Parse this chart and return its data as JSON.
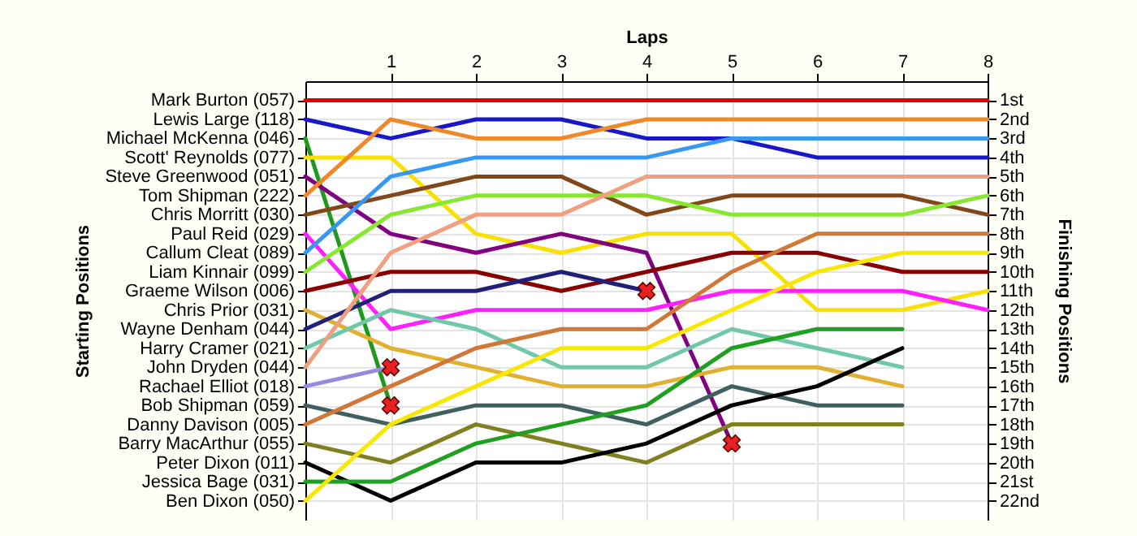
{
  "chart_data": {
    "type": "line",
    "xlabel": "Laps",
    "y2label": "Finishing Positions",
    "x": [
      0,
      1,
      2,
      3,
      4,
      5,
      6,
      7,
      8
    ],
    "xlim": [
      0,
      8
    ],
    "xticks": [
      1,
      2,
      3,
      4,
      5,
      6,
      7,
      8
    ],
    "y2lim": [
      23,
      0
    ],
    "y2ticks": [
      {
        "value": 1,
        "label": "1st"
      },
      {
        "value": 2,
        "label": "2nd"
      },
      {
        "value": 3,
        "label": "3rd"
      },
      {
        "value": 4,
        "label": "4th"
      },
      {
        "value": 5,
        "label": "5th"
      },
      {
        "value": 6,
        "label": "6th"
      },
      {
        "value": 7,
        "label": "7th"
      },
      {
        "value": 8,
        "label": "8th"
      },
      {
        "value": 9,
        "label": "9th"
      },
      {
        "value": 10,
        "label": "10th"
      },
      {
        "value": 11,
        "label": "11th"
      },
      {
        "value": 12,
        "label": "12th"
      },
      {
        "value": 13,
        "label": "13th"
      },
      {
        "value": 14,
        "label": "14th"
      },
      {
        "value": 15,
        "label": "15th"
      },
      {
        "value": 16,
        "label": "16th"
      },
      {
        "value": 17,
        "label": "17th"
      },
      {
        "value": 18,
        "label": "18th"
      },
      {
        "value": 19,
        "label": "19th"
      },
      {
        "value": 20,
        "label": "20th"
      },
      {
        "value": 21,
        "label": "21st"
      },
      {
        "value": 22,
        "label": "22nd"
      }
    ],
    "annotations": [
      "Starting Positions",
      "Mark Burton (057)",
      "Lewis Large (118)",
      "Michael McKenna (046)",
      "Scott' Reynolds (077)",
      "Steve Greenwood (051)",
      "Tom Shipman (222)",
      "Chris Morritt (030)",
      "Paul Reid (029)",
      "Callum Cleat (089)",
      "Liam Kinnair (099)",
      "Graeme Wilson (006)",
      "Chris Prior (031)",
      "Wayne Denham (044)",
      "Harry Cramer (021)",
      "John Dryden (044)",
      "Rachael Elliot (018)",
      "Bob Shipman (059)",
      "Danny Davison (005)",
      "Barry MacArthur (055)",
      "Peter Dixon (011)",
      "Jessica Bage (031)",
      "Ben Dixon (050)"
    ],
    "grid": true,
    "series": [
      {
        "axis": "y2",
        "color": "#e00000",
        "values": [
          1,
          1,
          1,
          1,
          1,
          1,
          1,
          1,
          1
        ]
      },
      {
        "axis": "y2",
        "color": "#1818c8",
        "values": [
          2,
          3,
          2,
          2,
          3,
          3,
          4,
          4,
          4
        ]
      },
      {
        "axis": "y2",
        "color": "#209820",
        "values": [
          3,
          17,
          null,
          null,
          null,
          null,
          null,
          null,
          null
        ]
      },
      {
        "axis": "y2",
        "color": "#f8e000",
        "values": [
          4,
          4,
          8,
          9,
          8,
          8,
          12,
          12,
          11
        ]
      },
      {
        "axis": "y2",
        "color": "#800080",
        "values": [
          5,
          8,
          9,
          8,
          9,
          19,
          null,
          null,
          null
        ]
      },
      {
        "axis": "y2",
        "color": "#f08828",
        "values": [
          6,
          2,
          3,
          3,
          2,
          2,
          2,
          2,
          2
        ]
      },
      {
        "axis": "y2",
        "color": "#804818",
        "values": [
          7,
          6,
          5,
          5,
          7,
          6,
          6,
          6,
          7
        ]
      },
      {
        "axis": "y2",
        "color": "#ff20ff",
        "values": [
          8,
          13,
          12,
          12,
          12,
          11,
          11,
          11,
          12
        ]
      },
      {
        "axis": "y2",
        "color": "#3898f0",
        "values": [
          9,
          5,
          4,
          4,
          4,
          3,
          3,
          3,
          3
        ]
      },
      {
        "axis": "y2",
        "color": "#88e830",
        "values": [
          10,
          7,
          6,
          6,
          6,
          7,
          7,
          7,
          6
        ]
      },
      {
        "axis": "y2",
        "color": "#880000",
        "values": [
          11,
          10,
          10,
          11,
          10,
          9,
          9,
          10,
          10
        ]
      },
      {
        "axis": "y2",
        "color": "#e0b030",
        "values": [
          12,
          14,
          15,
          16,
          16,
          15,
          15,
          16,
          null
        ]
      },
      {
        "axis": "y2",
        "color": "#202078",
        "values": [
          13,
          11,
          11,
          10,
          11,
          null,
          null,
          null,
          null
        ]
      },
      {
        "axis": "y2",
        "color": "#70c8a8",
        "values": [
          14,
          12,
          13,
          15,
          15,
          13,
          14,
          15,
          null
        ]
      },
      {
        "axis": "y2",
        "color": "#f0a080",
        "values": [
          15,
          9,
          7,
          7,
          5,
          5,
          5,
          5,
          5
        ]
      },
      {
        "axis": "y2",
        "color": "#9888e0",
        "values": [
          16,
          15,
          null,
          null,
          null,
          null,
          null,
          null,
          null
        ]
      },
      {
        "axis": "y2",
        "color": "#406060",
        "values": [
          17,
          18,
          17,
          17,
          18,
          16,
          17,
          17,
          null
        ]
      },
      {
        "axis": "y2",
        "color": "#d07838",
        "values": [
          18,
          16,
          14,
          13,
          13,
          10,
          8,
          8,
          8
        ]
      },
      {
        "axis": "y2",
        "color": "#808020",
        "values": [
          19,
          20,
          18,
          19,
          20,
          18,
          18,
          18,
          null
        ]
      },
      {
        "axis": "y2",
        "color": "#000000",
        "values": [
          20,
          22,
          20,
          20,
          19,
          17,
          16,
          14,
          null
        ]
      },
      {
        "axis": "y2",
        "color": "#20a020",
        "values": [
          21,
          21,
          19,
          18,
          17,
          14,
          13,
          13,
          null
        ]
      },
      {
        "axis": "y2",
        "color": "#f8e800",
        "values": [
          22,
          18,
          16,
          14,
          14,
          12,
          10,
          9,
          9
        ]
      },
      {
        "axis": "y2",
        "type": "scatter",
        "marker": "cross",
        "color": "#e82020",
        "x": [
          1,
          1,
          4,
          5
        ],
        "values": [
          15,
          17,
          11,
          19
        ]
      }
    ]
  }
}
